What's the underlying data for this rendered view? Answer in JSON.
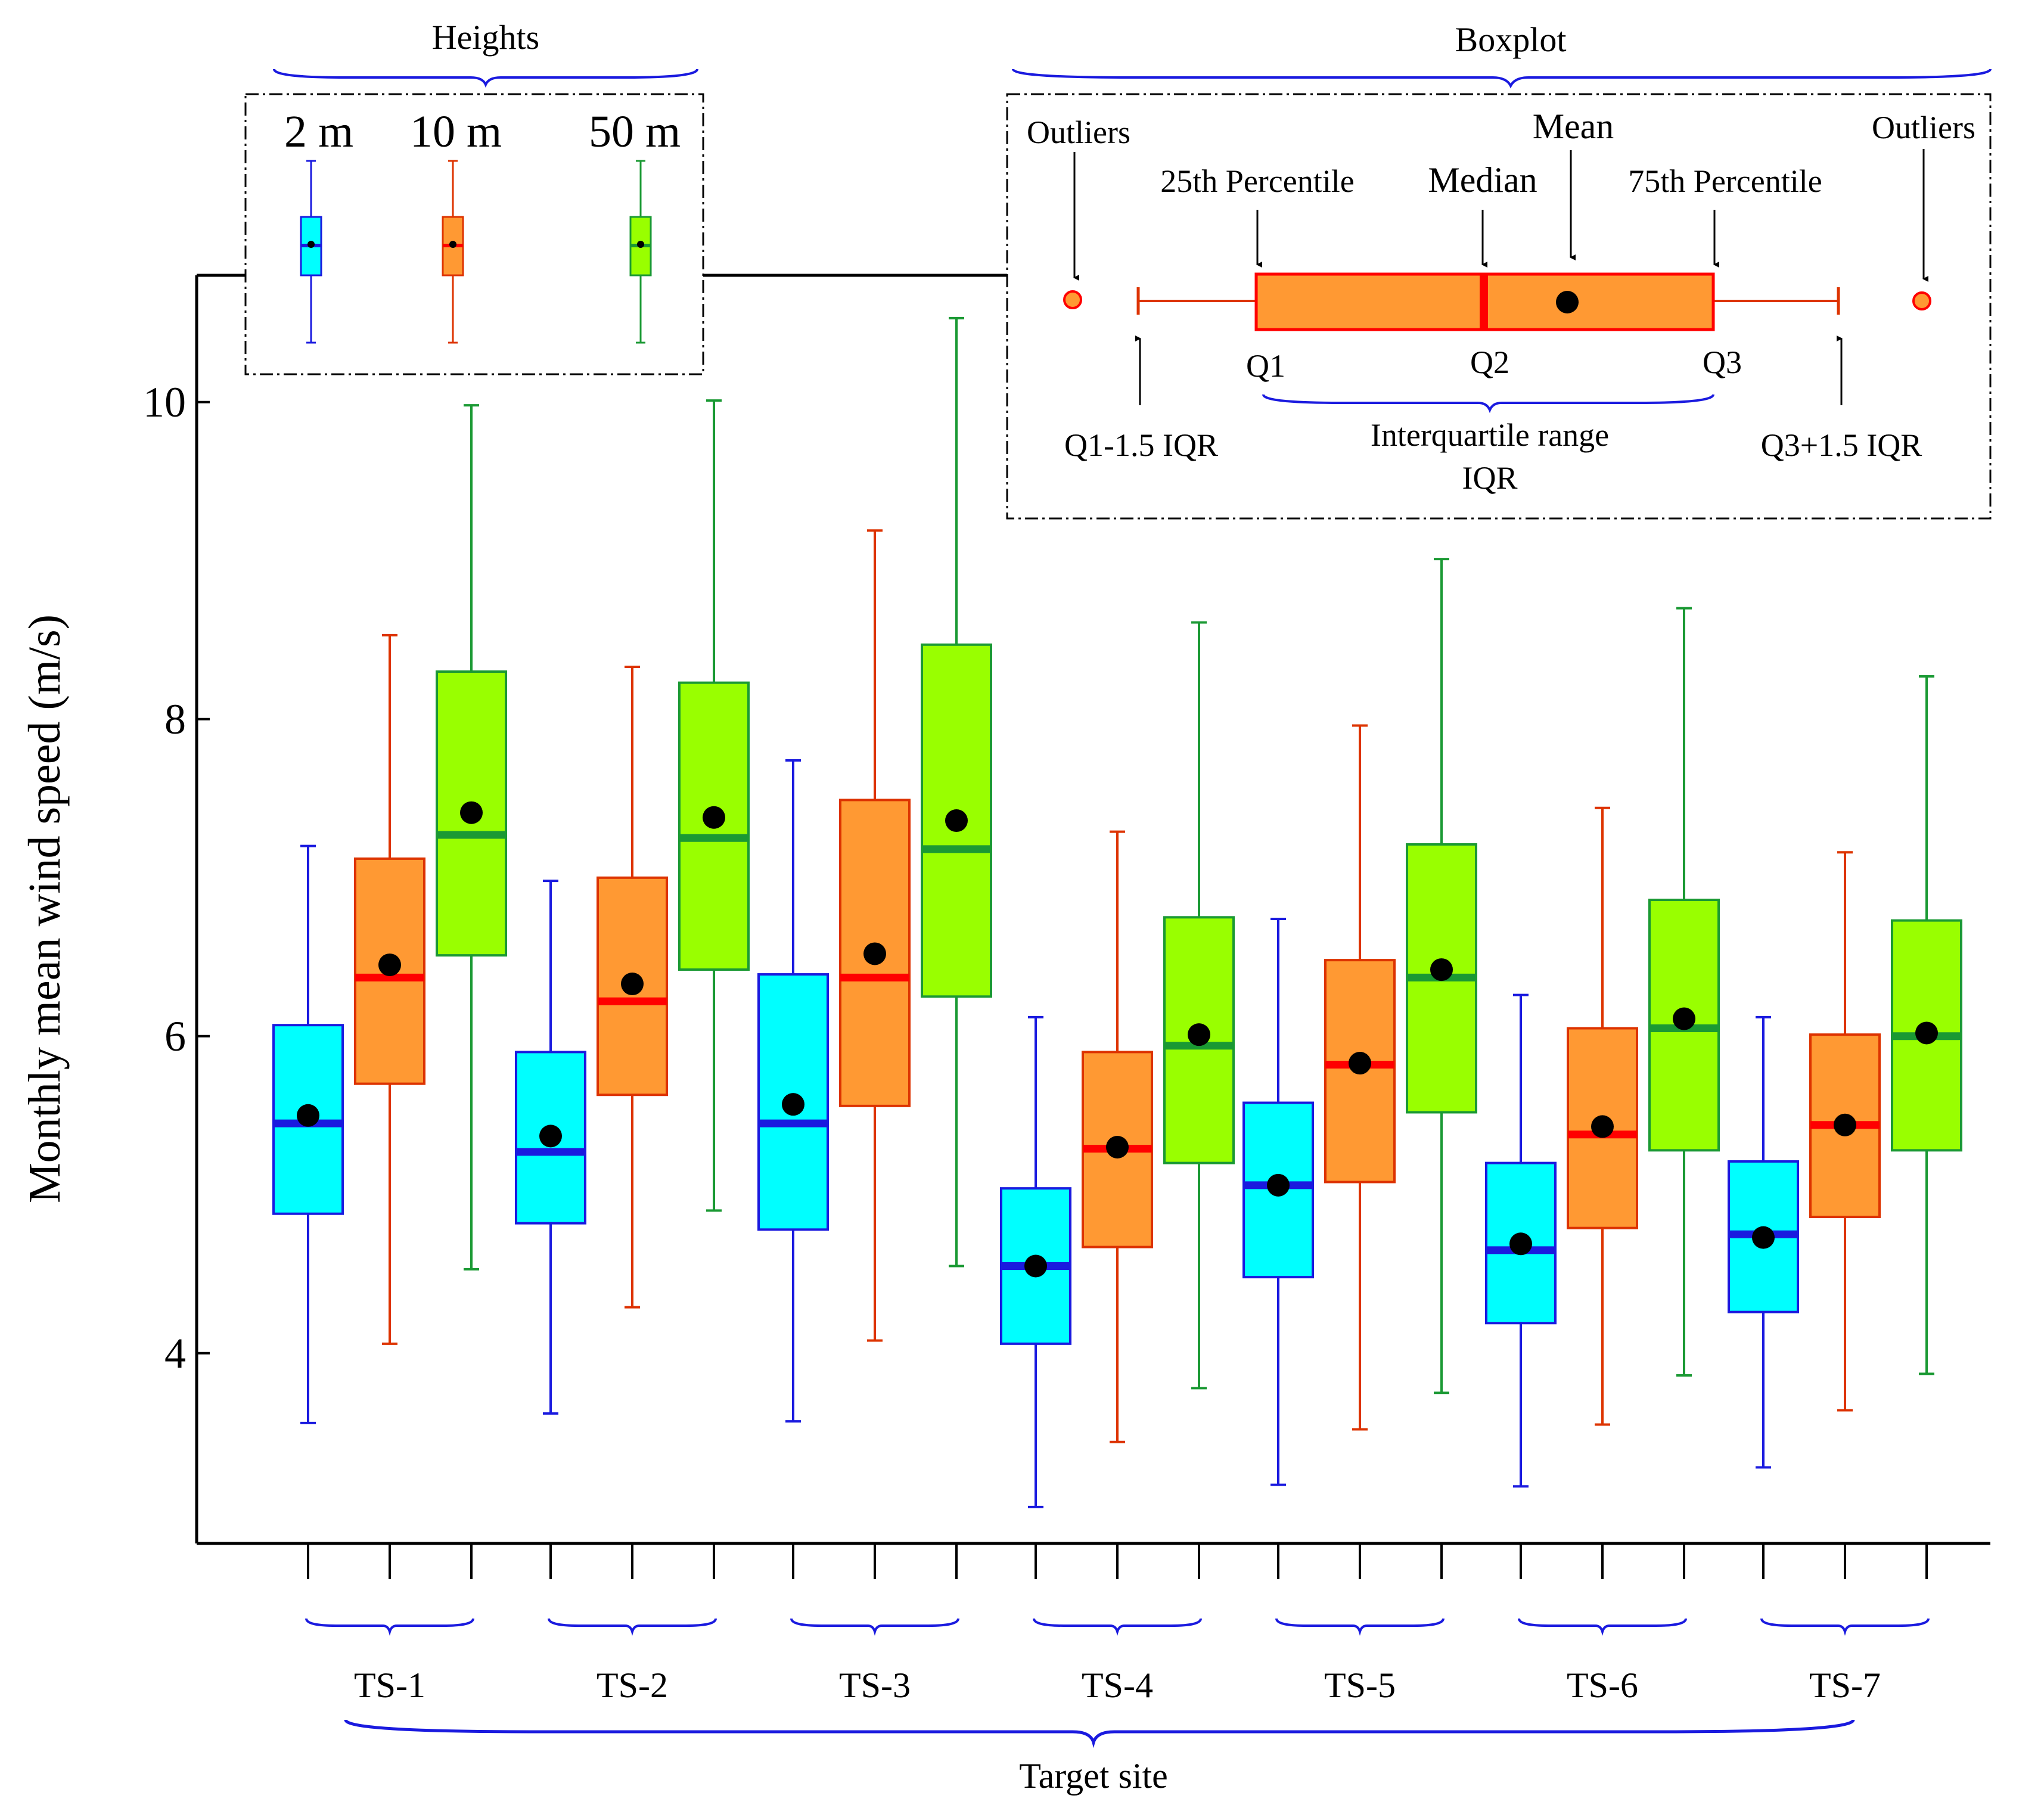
{
  "chart_data": {
    "type": "boxplot",
    "ylabel": "Monthly  mean wind speed (m/s)",
    "xlabel": "Target site",
    "ylim": [
      2.8,
      10.8
    ],
    "yticks": [
      4,
      6,
      8,
      10
    ],
    "categories": [
      "TS-1",
      "TS-2",
      "TS-3",
      "TS-4",
      "TS-5",
      "TS-6",
      "TS-7"
    ],
    "series": [
      {
        "name": "2 m",
        "fill": "#00ffff",
        "stroke": "#1a1adf",
        "median_color": "#1a1adf",
        "boxes": [
          {
            "whislo": 3.56,
            "q1": 4.88,
            "med": 5.45,
            "mean": 5.5,
            "q3": 6.07,
            "whishi": 7.2
          },
          {
            "whislo": 3.62,
            "q1": 4.82,
            "med": 5.27,
            "mean": 5.37,
            "q3": 5.9,
            "whishi": 6.98
          },
          {
            "whislo": 3.57,
            "q1": 4.78,
            "med": 5.45,
            "mean": 5.57,
            "q3": 6.39,
            "whishi": 7.74
          },
          {
            "whislo": 3.03,
            "q1": 4.06,
            "med": 4.55,
            "mean": 4.55,
            "q3": 5.04,
            "whishi": 6.12
          },
          {
            "whislo": 3.17,
            "q1": 4.48,
            "med": 5.06,
            "mean": 5.06,
            "q3": 5.58,
            "whishi": 6.74
          },
          {
            "whislo": 3.16,
            "q1": 4.19,
            "med": 4.65,
            "mean": 4.69,
            "q3": 5.2,
            "whishi": 6.26
          },
          {
            "whislo": 3.28,
            "q1": 4.26,
            "med": 4.75,
            "mean": 4.73,
            "q3": 5.21,
            "whishi": 6.12
          }
        ]
      },
      {
        "name": "10 m",
        "fill": "#ff9933",
        "stroke": "#dd3300",
        "median_color": "#ff0000",
        "boxes": [
          {
            "whislo": 4.06,
            "q1": 5.7,
            "med": 6.37,
            "mean": 6.45,
            "q3": 7.12,
            "whishi": 8.53
          },
          {
            "whislo": 4.29,
            "q1": 5.63,
            "med": 6.22,
            "mean": 6.33,
            "q3": 7.0,
            "whishi": 8.33
          },
          {
            "whislo": 4.08,
            "q1": 5.56,
            "med": 6.37,
            "mean": 6.52,
            "q3": 7.49,
            "whishi": 9.19
          },
          {
            "whislo": 3.44,
            "q1": 4.67,
            "med": 5.29,
            "mean": 5.3,
            "q3": 5.9,
            "whishi": 7.29
          },
          {
            "whislo": 3.52,
            "q1": 5.08,
            "med": 5.82,
            "mean": 5.83,
            "q3": 6.48,
            "whishi": 7.96
          },
          {
            "whislo": 3.55,
            "q1": 4.79,
            "med": 5.38,
            "mean": 5.43,
            "q3": 6.05,
            "whishi": 7.44
          },
          {
            "whislo": 3.64,
            "q1": 4.86,
            "med": 5.44,
            "mean": 5.44,
            "q3": 6.01,
            "whishi": 7.16
          }
        ]
      },
      {
        "name": "50 m",
        "fill": "#99ff00",
        "stroke": "#1a9933",
        "median_color": "#1a9933",
        "boxes": [
          {
            "whislo": 4.53,
            "q1": 6.51,
            "med": 7.27,
            "mean": 7.41,
            "q3": 8.3,
            "whishi": 9.98
          },
          {
            "whislo": 4.9,
            "q1": 6.42,
            "med": 7.25,
            "mean": 7.38,
            "q3": 8.23,
            "whishi": 10.01
          },
          {
            "whislo": 4.55,
            "q1": 6.25,
            "med": 7.18,
            "mean": 7.36,
            "q3": 8.47,
            "whishi": 10.53
          },
          {
            "whislo": 3.78,
            "q1": 5.2,
            "med": 5.94,
            "mean": 6.01,
            "q3": 6.75,
            "whishi": 8.61
          },
          {
            "whislo": 3.75,
            "q1": 5.52,
            "med": 6.37,
            "mean": 6.42,
            "q3": 7.21,
            "whishi": 9.01
          },
          {
            "whislo": 3.86,
            "q1": 5.28,
            "med": 6.05,
            "mean": 6.11,
            "q3": 6.86,
            "whishi": 8.7
          },
          {
            "whislo": 3.87,
            "q1": 5.28,
            "med": 6.0,
            "mean": 6.02,
            "q3": 6.73,
            "whishi": 8.27
          }
        ]
      }
    ],
    "legend_heights": {
      "title": "Heights",
      "labels": [
        "2 m",
        "10 m",
        "50 m"
      ]
    },
    "legend_boxplot": {
      "title": "Boxplot",
      "outliers": "Outliers",
      "p25": "25th Percentile",
      "median": "Median",
      "mean": "Mean",
      "p75": "75th Percentile",
      "q1": "Q1",
      "q2": "Q2",
      "q3": "Q3",
      "lower_fence": "Q1-1.5 IQR",
      "upper_fence": "Q3+1.5 IQR",
      "iqr_line1": "Interquartile range",
      "iqr_line2": "IQR"
    }
  }
}
